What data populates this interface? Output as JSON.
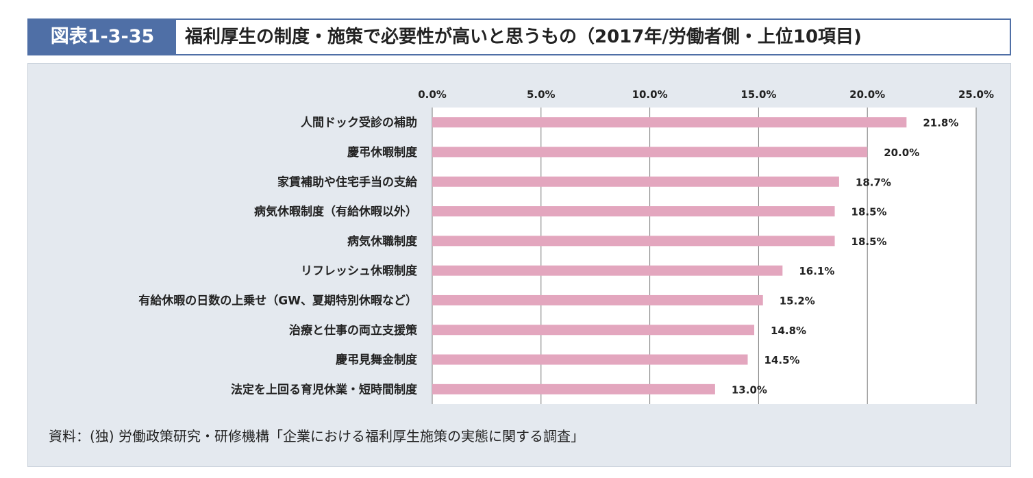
{
  "header": {
    "figure_number": "図表1-3-35",
    "title": "福利厚生の制度・施策で必要性が高いと思うもの（2017年/労働者側・上位10項目)"
  },
  "source": "資料：(独) 労働政策研究・研修機構「企業における福利厚生施策の実態に関する調査」",
  "colors": {
    "bar": "#e3a6be",
    "header_bg": "#4f6fa6",
    "panel_bg": "#e4e9ef"
  },
  "chart_data": {
    "type": "bar",
    "orientation": "horizontal",
    "title": "",
    "xlabel": "",
    "ylabel": "",
    "xlim": [
      0,
      25
    ],
    "ticks": [
      "0.0%",
      "5.0%",
      "10.0%",
      "15.0%",
      "20.0%",
      "25.0%"
    ],
    "tick_values": [
      0,
      5,
      10,
      15,
      20,
      25
    ],
    "grid": true,
    "categories": [
      "人間ドック受診の補助",
      "慶弔休暇制度",
      "家賃補助や住宅手当の支給",
      "病気休暇制度（有給休暇以外）",
      "病気休職制度",
      "リフレッシュ休暇制度",
      "有給休暇の日数の上乗せ（GW、夏期特別休暇など）",
      "治療と仕事の両立支援策",
      "慶弔見舞金制度",
      "法定を上回る育児休業・短時間制度"
    ],
    "values": [
      21.8,
      20.0,
      18.7,
      18.5,
      18.5,
      16.1,
      15.2,
      14.8,
      14.5,
      13.0
    ],
    "value_labels": [
      "21.8%",
      "20.0%",
      "18.7%",
      "18.5%",
      "18.5%",
      "16.1%",
      "15.2%",
      "14.8%",
      "14.5%",
      "13.0%"
    ]
  }
}
